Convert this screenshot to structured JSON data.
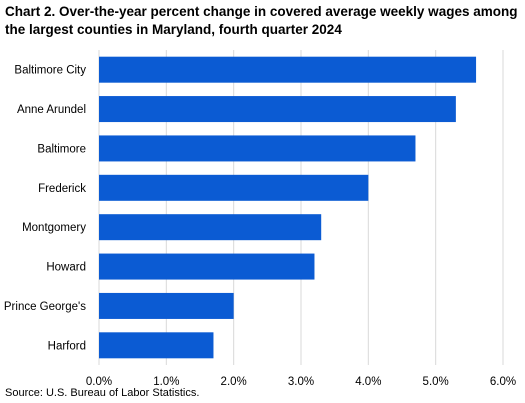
{
  "chart_data": {
    "type": "bar",
    "orientation": "horizontal",
    "title": "Chart 2. Over-the-year percent change in covered average weekly wages among the largest counties in Maryland, fourth quarter 2024",
    "categories": [
      "Baltimore City",
      "Anne Arundel",
      "Baltimore",
      "Frederick",
      "Montgomery",
      "Howard",
      "Prince George's",
      "Harford"
    ],
    "values": [
      5.6,
      5.3,
      4.7,
      4.0,
      3.3,
      3.2,
      2.0,
      1.7
    ],
    "xlim": [
      0,
      6
    ],
    "xticks": [
      "0.0%",
      "1.0%",
      "2.0%",
      "3.0%",
      "4.0%",
      "5.0%",
      "6.0%"
    ],
    "xtick_values": [
      0,
      1,
      2,
      3,
      4,
      5,
      6
    ],
    "bar_color": "#0b5bd3",
    "grid": "vertical",
    "source": "Source: U.S. Bureau of Labor Statistics."
  }
}
